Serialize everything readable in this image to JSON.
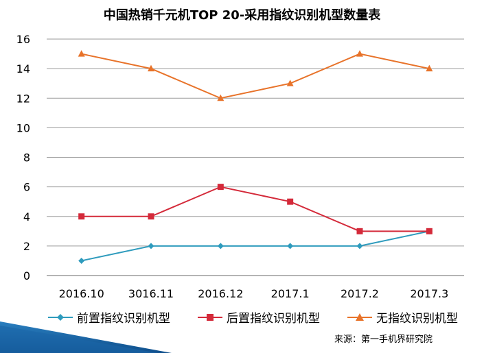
{
  "chart_data": {
    "type": "line",
    "title": "中国热销千元机TOP 20-采用指纹识别机型数量表",
    "categories": [
      "2016.10",
      "3016.11",
      "2016.12",
      "2017.1",
      "2017.2",
      "2017.3"
    ],
    "ylim": [
      0,
      16
    ],
    "yticks": [
      0,
      2,
      4,
      6,
      8,
      10,
      12,
      14,
      16
    ],
    "grid": true,
    "legend_position": "bottom",
    "series": [
      {
        "name": "前置指纹识别机型",
        "values": [
          1,
          2,
          2,
          2,
          2,
          3
        ],
        "color": "#2e9bbd",
        "marker": "diamond"
      },
      {
        "name": "后置指纹识别机型",
        "values": [
          4,
          4,
          6,
          5,
          3,
          3
        ],
        "color": "#d42a3a",
        "marker": "square"
      },
      {
        "name": "无指纹识别机型",
        "values": [
          15,
          14,
          12,
          13,
          15,
          14
        ],
        "color": "#e8732a",
        "marker": "triangle"
      }
    ]
  },
  "source": "来源：第一手机界研究院"
}
